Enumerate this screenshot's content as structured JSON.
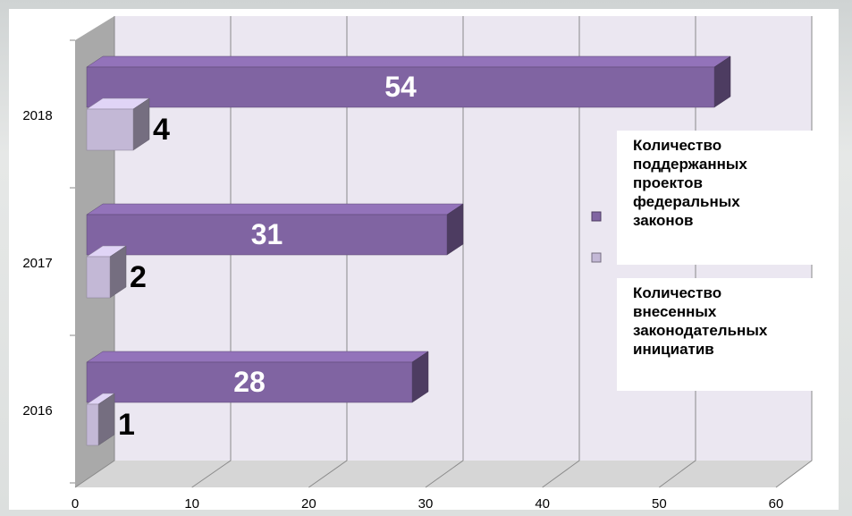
{
  "chart_data": {
    "type": "bar3d-horizontal",
    "categories": [
      "2016",
      "2017",
      "2018"
    ],
    "series": [
      {
        "name": "Количество поддержанных проектов федеральных законов",
        "color": "#8064a2",
        "values": [
          28,
          31,
          54
        ]
      },
      {
        "name": "Количество внесенных законодательных инициатив",
        "color": "#c3b8d6",
        "values": [
          1,
          2,
          4
        ]
      }
    ],
    "xlim": [
      0,
      60
    ],
    "xticks": [
      0,
      10,
      20,
      30,
      40,
      50,
      60
    ],
    "grid": true
  }
}
